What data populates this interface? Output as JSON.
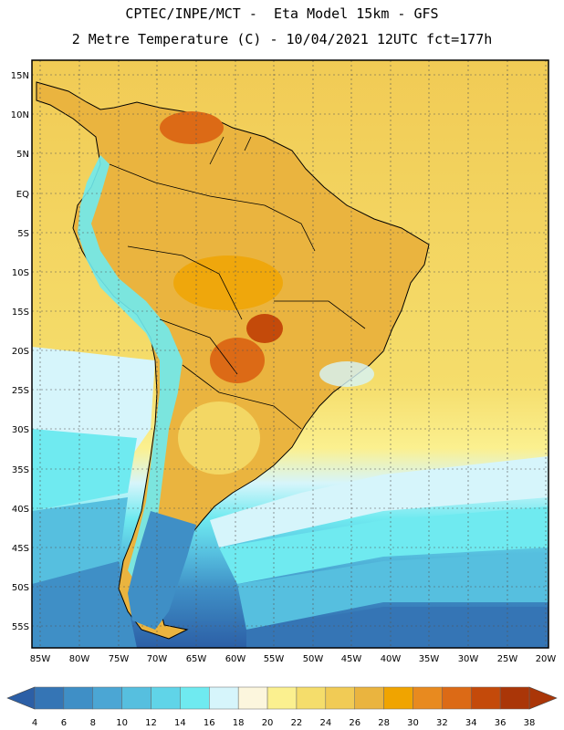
{
  "header": {
    "line1": "CPTEC/INPE/MCT -  Eta Model 15km - GFS",
    "line2": "2 Metre Temperature (C) - 10/04/2021 12UTC fct=177h"
  },
  "map": {
    "lat_labels": [
      "15N",
      "10N",
      "5N",
      "EQ",
      "5S",
      "10S",
      "15S",
      "20S",
      "25S",
      "30S",
      "35S",
      "40S",
      "45S",
      "50S",
      "55S"
    ],
    "lon_labels": [
      "85W",
      "80W",
      "75W",
      "70W",
      "65W",
      "60W",
      "55W",
      "50W",
      "45W",
      "40W",
      "35W",
      "30W",
      "25W",
      "20W"
    ]
  },
  "legend": {
    "values": [
      "4",
      "6",
      "8",
      "10",
      "12",
      "14",
      "16",
      "18",
      "20",
      "22",
      "24",
      "26",
      "28",
      "30",
      "32",
      "34",
      "36",
      "38"
    ],
    "colors": [
      "#2c5fa6",
      "#3575b5",
      "#3f8fc6",
      "#4ba6d4",
      "#56bfdf",
      "#60d4e8",
      "#6feaf0",
      "#d6f5fb",
      "#fcf6dd",
      "#fbf08f",
      "#f5dd6b",
      "#f1cb55",
      "#eab43f",
      "#f0a400",
      "#e88a1f",
      "#dc6a16",
      "#c44a0a",
      "#aa3608"
    ]
  }
}
